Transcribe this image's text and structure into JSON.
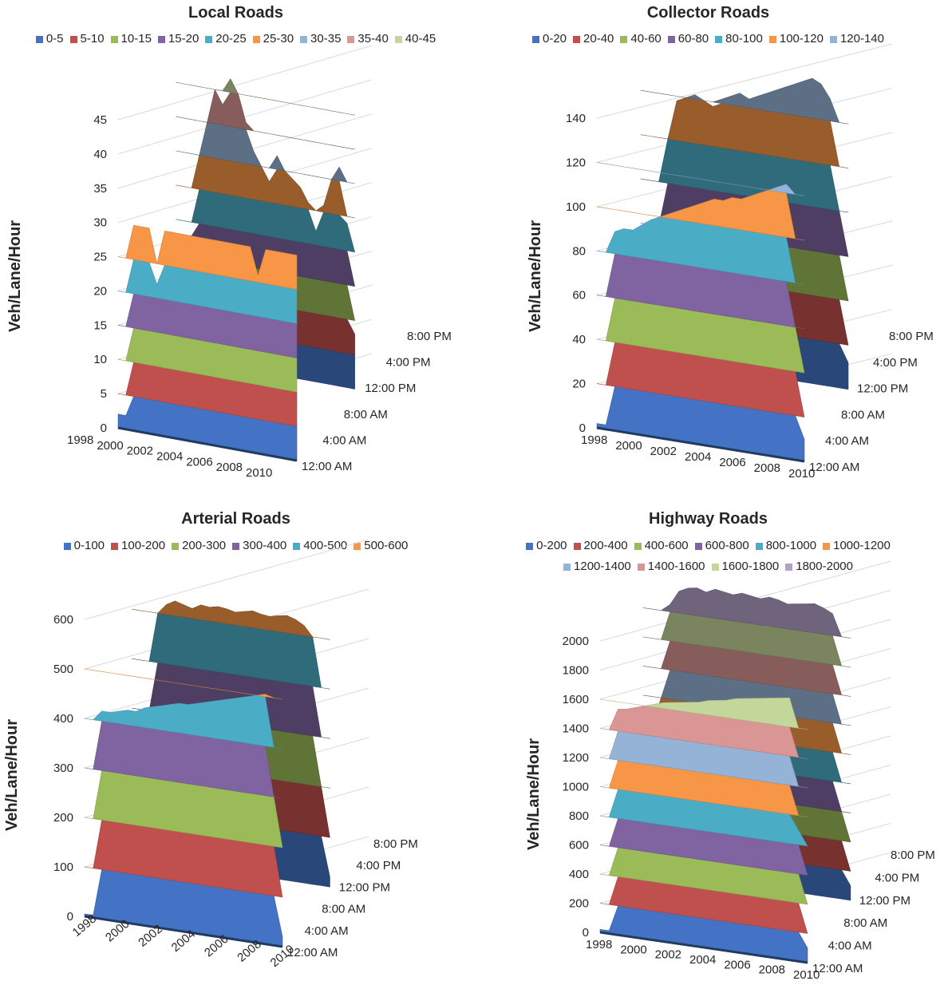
{
  "ylabel": "Veh/Lane/Hour",
  "x_years": [
    "1998",
    "2000",
    "2002",
    "2004",
    "2006",
    "2008",
    "2010"
  ],
  "z_times": [
    "12:00 AM",
    "4:00 AM",
    "8:00 AM",
    "12:00 PM",
    "4:00 PM",
    "8:00 PM"
  ],
  "chart_data": [
    {
      "type": "surface",
      "title": "Local Roads",
      "xlabel": "",
      "ylabel": "Veh/Lane/Hour",
      "x": [
        "1998",
        "2000",
        "2002",
        "2004",
        "2006",
        "2008",
        "2010"
      ],
      "z": [
        "12:00 AM",
        "4:00 AM",
        "8:00 AM",
        "12:00 PM",
        "4:00 PM",
        "8:00 PM"
      ],
      "y_ticks": [
        0,
        5,
        10,
        15,
        20,
        25,
        30,
        35,
        40,
        45
      ],
      "ylim": [
        0,
        45
      ],
      "legend": [
        "0-5",
        "5-10",
        "10-15",
        "15-20",
        "20-25",
        "25-30",
        "30-35",
        "35-40",
        "40-45"
      ],
      "colors": [
        "#4472c4",
        "#c0504d",
        "#9bbb59",
        "#8064a2",
        "#4bacc6",
        "#f79646",
        "#95b3d7",
        "#da9694",
        "#c4d79b"
      ],
      "profile_front": [
        2,
        2,
        30,
        30,
        30,
        22,
        30,
        30,
        30,
        30,
        30,
        30,
        30,
        30,
        30,
        30,
        30,
        30,
        26,
        30,
        30,
        30,
        30,
        30
      ],
      "profile_back": [
        2,
        2,
        18,
        30,
        35,
        40,
        38,
        42,
        40,
        36,
        32,
        30,
        28,
        32,
        30,
        29,
        28,
        26,
        22,
        26,
        30,
        32,
        24,
        8
      ]
    },
    {
      "type": "surface",
      "title": "Collector Roads",
      "xlabel": "",
      "ylabel": "Veh/Lane/Hour",
      "x": [
        "1998",
        "2000",
        "2002",
        "2004",
        "2006",
        "2008",
        "2010"
      ],
      "z": [
        "12:00 AM",
        "4:00 AM",
        "8:00 AM",
        "12:00 PM",
        "4:00 PM",
        "8:00 PM"
      ],
      "y_ticks": [
        0,
        20,
        40,
        60,
        80,
        100,
        120,
        140
      ],
      "ylim": [
        0,
        140
      ],
      "legend": [
        "0-20",
        "20-40",
        "40-60",
        "60-80",
        "80-100",
        "100-120",
        "120-140"
      ],
      "colors": [
        "#4472c4",
        "#c0504d",
        "#9bbb59",
        "#8064a2",
        "#4bacc6",
        "#f79646",
        "#95b3d7"
      ],
      "profile_front": [
        2,
        2,
        90,
        92,
        92,
        95,
        98,
        100,
        102,
        104,
        106,
        108,
        110,
        112,
        112,
        114,
        114,
        116,
        118,
        120,
        122,
        124,
        60,
        10
      ],
      "profile_back": [
        2,
        2,
        60,
        100,
        118,
        120,
        122,
        120,
        118,
        122,
        124,
        126,
        124,
        126,
        128,
        130,
        132,
        134,
        136,
        138,
        136,
        130,
        80,
        12
      ]
    },
    {
      "type": "surface",
      "title": "Arterial Roads",
      "xlabel": "",
      "ylabel": "Veh/Lane/Hour",
      "x": [
        "1998",
        "2000",
        "2002",
        "2004",
        "2006",
        "2008",
        "2010"
      ],
      "z": [
        "12:00 AM",
        "4:00 AM",
        "8:00 AM",
        "12:00 PM",
        "4:00 PM",
        "8:00 PM"
      ],
      "y_ticks": [
        0,
        100,
        200,
        300,
        400,
        500,
        600
      ],
      "ylim": [
        0,
        600
      ],
      "legend": [
        "0-100",
        "100-200",
        "200-300",
        "300-400",
        "400-500",
        "500-600"
      ],
      "colors": [
        "#4472c4",
        "#c0504d",
        "#9bbb59",
        "#8064a2",
        "#4bacc6",
        "#f79646"
      ],
      "profile_front": [
        5,
        5,
        420,
        420,
        425,
        430,
        430,
        440,
        445,
        450,
        455,
        460,
        460,
        465,
        470,
        475,
        480,
        485,
        490,
        495,
        500,
        505,
        300,
        20
      ],
      "profile_back": [
        5,
        5,
        300,
        500,
        520,
        530,
        525,
        520,
        530,
        528,
        532,
        530,
        526,
        530,
        534,
        530,
        528,
        532,
        535,
        530,
        520,
        500,
        200,
        20
      ]
    },
    {
      "type": "surface",
      "title": "Highway Roads",
      "xlabel": "",
      "ylabel": "Veh/Lane/Hour",
      "x": [
        "1998",
        "2000",
        "2002",
        "2004",
        "2006",
        "2008",
        "2010"
      ],
      "z": [
        "12:00 AM",
        "4:00 AM",
        "8:00 AM",
        "12:00 PM",
        "4:00 PM",
        "8:00 PM"
      ],
      "y_ticks": [
        0,
        200,
        400,
        600,
        800,
        1000,
        1200,
        1400,
        1600,
        1800,
        2000
      ],
      "ylim": [
        0,
        2000
      ],
      "legend": [
        "0-200",
        "200-400",
        "400-600",
        "600-800",
        "800-1000",
        "1000-1200",
        "1200-1400",
        "1400-1600",
        "1600-1800",
        "1800-2000"
      ],
      "colors": [
        "#4472c4",
        "#c0504d",
        "#9bbb59",
        "#8064a2",
        "#4bacc6",
        "#f79646",
        "#95b3d7",
        "#da9694",
        "#c4d79b",
        "#b3a2c7"
      ],
      "profile_front": [
        20,
        20,
        1550,
        1560,
        1580,
        1600,
        1620,
        1640,
        1650,
        1660,
        1670,
        1680,
        1700,
        1710,
        1720,
        1740,
        1750,
        1760,
        1770,
        1780,
        1790,
        1800,
        900,
        100
      ],
      "profile_back": [
        20,
        20,
        1200,
        1850,
        1950,
        1980,
        1990,
        1970,
        2000,
        1990,
        1980,
        2000,
        1990,
        1980,
        2000,
        1990,
        1970,
        1980,
        1990,
        2000,
        1980,
        1950,
        600,
        100
      ]
    }
  ]
}
